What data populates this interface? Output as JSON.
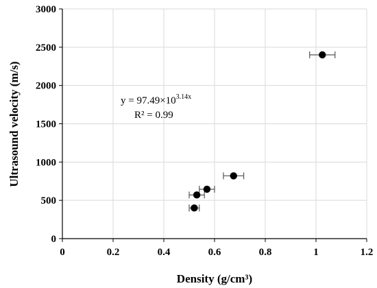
{
  "chart_data": {
    "type": "scatter",
    "xlabel": "Density  (g/cm³)",
    "ylabel": "Ultrasound velocity (m/s)",
    "xlim": [
      0,
      1.2
    ],
    "ylim": [
      0,
      3000
    ],
    "x_ticks": [
      0,
      0.2,
      0.4,
      0.6,
      0.8,
      1,
      1.2
    ],
    "x_tick_labels": [
      "0",
      "0.2",
      "0.4",
      "0.6",
      "0.8",
      "1",
      "1.2"
    ],
    "y_ticks": [
      0,
      500,
      1000,
      1500,
      2000,
      2500,
      3000
    ],
    "y_tick_labels": [
      "0",
      "500",
      "1000",
      "1500",
      "2000",
      "2500",
      "3000"
    ],
    "grid": true,
    "points": [
      {
        "x": 0.52,
        "y": 400,
        "xerr": 0.02
      },
      {
        "x": 0.53,
        "y": 570,
        "xerr": 0.03
      },
      {
        "x": 0.57,
        "y": 645,
        "xerr": 0.03
      },
      {
        "x": 0.675,
        "y": 820,
        "xerr": 0.04
      },
      {
        "x": 1.025,
        "y": 2400,
        "xerr": 0.05
      }
    ],
    "point_color": "#000000",
    "trendline": {
      "type": "exponential",
      "a": 97.49,
      "b": 3.14,
      "x_range": [
        0.52,
        1.025
      ],
      "style": "dotted",
      "color": "#000000"
    },
    "annotations": {
      "equation_main": "y = 97.49×10",
      "equation_exponent": "3.14x",
      "r_squared": "R² = 0.99"
    }
  }
}
